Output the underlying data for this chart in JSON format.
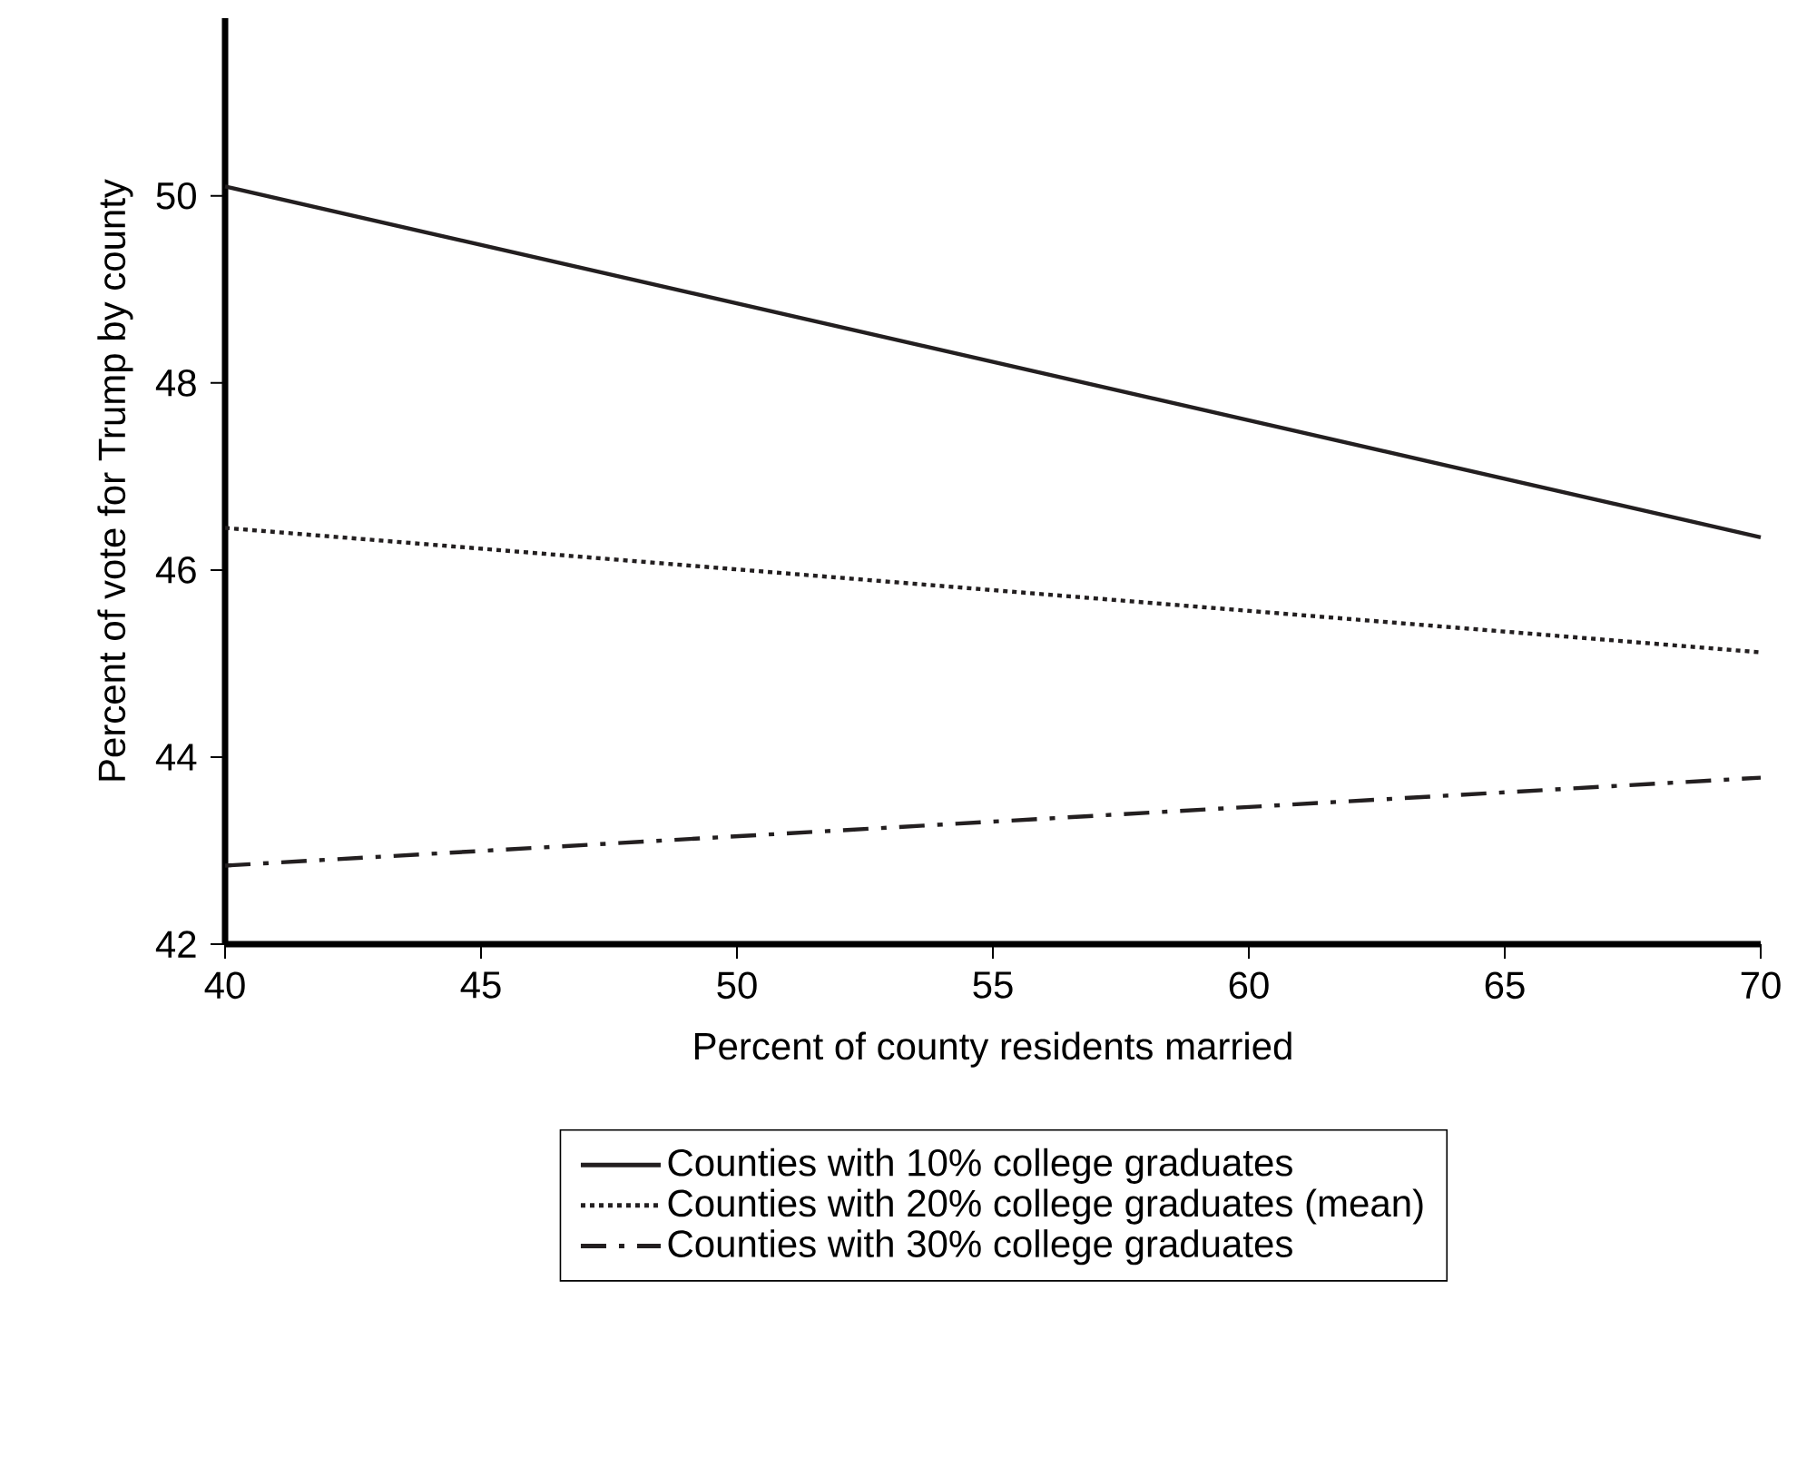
{
  "chart_data": {
    "type": "line",
    "xlabel": "Percent of county residents married",
    "ylabel": "Percent of vote for Trump by county",
    "xlim": [
      40,
      70
    ],
    "ylim": [
      42,
      51.9
    ],
    "xticks": [
      40,
      45,
      50,
      55,
      60,
      65,
      70
    ],
    "yticks": [
      42,
      44,
      46,
      48,
      50
    ],
    "legend": "bottom",
    "grid": false,
    "x": [
      40,
      70
    ],
    "series": [
      {
        "name": "Counties with 10% college graduates",
        "color": "#231f20",
        "line_style": "solid",
        "values": [
          50.1,
          46.35
        ]
      },
      {
        "name": "Counties with 20% college graduates (mean)",
        "color": "#231f20",
        "line_style": "dotted",
        "values": [
          46.45,
          45.12
        ]
      },
      {
        "name": "Counties with 30% college graduates",
        "color": "#231f20",
        "line_style": "dashdot",
        "values": [
          42.84,
          43.78
        ]
      }
    ]
  }
}
